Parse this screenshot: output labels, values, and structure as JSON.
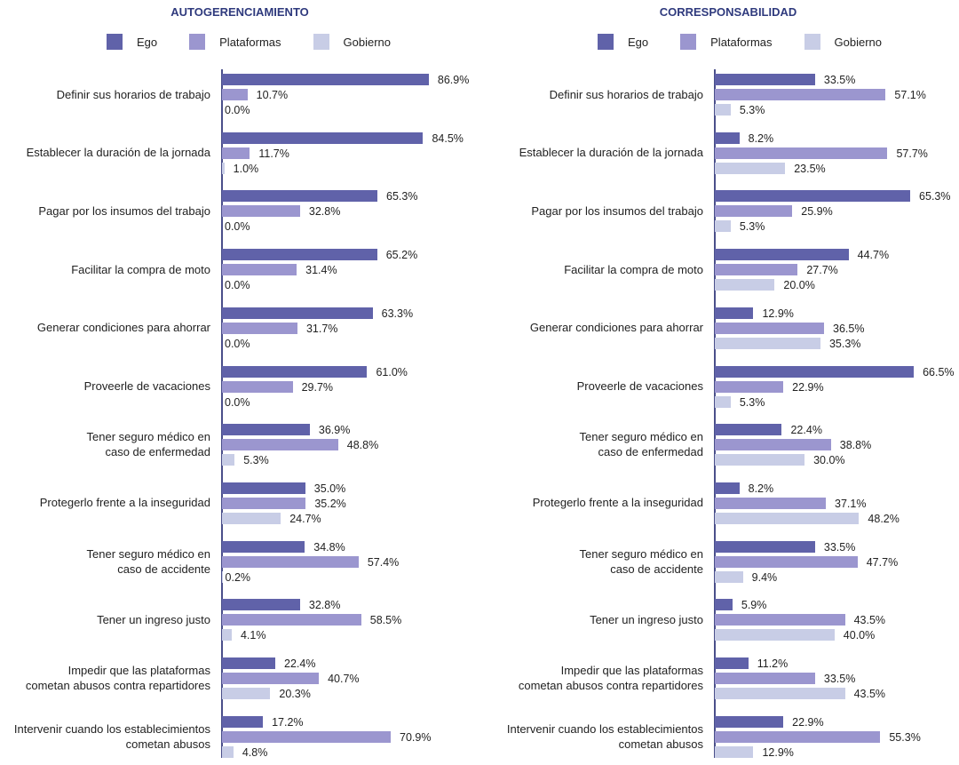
{
  "colors": {
    "Ego": "#6062a9",
    "Plataformas": "#9b96cf",
    "Gobierno": "#c8cde6",
    "title": "#2f3a7d"
  },
  "chart_data": [
    {
      "type": "bar",
      "orientation": "horizontal",
      "title": "AUTOGERENCIAMIENTO",
      "xlabel": "",
      "ylabel": "",
      "xlim": [
        0,
        100
      ],
      "grid": false,
      "legend": {
        "position": "top-center",
        "entries": [
          "Ego",
          "Plataformas",
          "Gobierno"
        ]
      },
      "categories": [
        "Definir sus horarios de trabajo",
        "Establecer la duración de la jornada",
        "Pagar por los insumos del trabajo",
        "Facilitar la compra de moto",
        "Generar condiciones para ahorrar",
        "Proveerle de vacaciones",
        "Tener seguro médico en\ncaso de enfermedad",
        "Protegerlo frente a la inseguridad",
        "Tener seguro médico en\ncaso de accidente",
        "Tener un ingreso justo",
        "Impedir que las plataformas\ncometan abusos contra repartidores",
        "Intervenir cuando los establecimientos\ncometan abusos"
      ],
      "series": [
        {
          "name": "Ego",
          "values": [
            86.9,
            84.5,
            65.3,
            65.2,
            63.3,
            61.0,
            36.9,
            35.0,
            34.8,
            32.8,
            22.4,
            17.2
          ]
        },
        {
          "name": "Plataformas",
          "values": [
            10.7,
            11.7,
            32.8,
            31.4,
            31.7,
            29.7,
            48.8,
            35.2,
            57.4,
            58.5,
            40.7,
            70.9
          ]
        },
        {
          "name": "Gobierno",
          "values": [
            0.0,
            1.0,
            0.0,
            0.0,
            0.0,
            0.0,
            5.3,
            24.7,
            0.2,
            4.1,
            20.3,
            4.8
          ]
        }
      ],
      "value_format": "percent_1dp"
    },
    {
      "type": "bar",
      "orientation": "horizontal",
      "title": "CORRESPONSABILIDAD",
      "xlabel": "",
      "ylabel": "",
      "xlim": [
        0,
        70
      ],
      "grid": false,
      "legend": {
        "position": "top-center",
        "entries": [
          "Ego",
          "Plataformas",
          "Gobierno"
        ]
      },
      "categories": [
        "Definir sus horarios de trabajo",
        "Establecer la duración de la jornada",
        "Pagar por los insumos del trabajo",
        "Facilitar la compra de moto",
        "Generar condiciones para ahorrar",
        "Proveerle de vacaciones",
        "Tener seguro médico en\ncaso de enfermedad",
        "Protegerlo frente a la inseguridad",
        "Tener seguro médico en\ncaso de accidente",
        "Tener un ingreso justo",
        "Impedir que las plataformas\ncometan abusos contra repartidores",
        "Intervenir cuando los establecimientos\ncometan abusos"
      ],
      "series": [
        {
          "name": "Ego",
          "values": [
            33.5,
            8.2,
            65.3,
            44.7,
            12.9,
            66.5,
            22.4,
            8.2,
            33.5,
            5.9,
            11.2,
            22.9
          ]
        },
        {
          "name": "Plataformas",
          "values": [
            57.1,
            57.7,
            25.9,
            27.7,
            36.5,
            22.9,
            38.8,
            37.1,
            47.7,
            43.5,
            33.5,
            55.3
          ]
        },
        {
          "name": "Gobierno",
          "values": [
            5.3,
            23.5,
            5.3,
            20.0,
            35.3,
            5.3,
            30.0,
            48.2,
            9.4,
            40.0,
            43.5,
            12.9
          ]
        }
      ],
      "value_format": "percent_1dp"
    }
  ]
}
